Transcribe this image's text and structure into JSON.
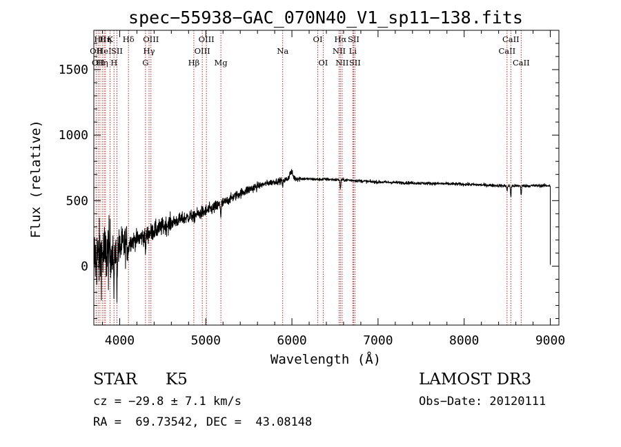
{
  "chart_data": {
    "type": "line",
    "title": "spec−55938−GAC_070N40_V1_sp11−138.fits",
    "xlabel": "Wavelength (Å)",
    "ylabel": "Flux (relative)",
    "xlim": [
      3700,
      9100
    ],
    "ylim": [
      -450,
      1800
    ],
    "xticks": [
      4000,
      5000,
      6000,
      7000,
      8000,
      9000
    ],
    "yticks": [
      0,
      500,
      1000,
      1500
    ],
    "grid": false,
    "spectrum": {
      "name": "flux",
      "continuum": [
        [
          3700,
          60
        ],
        [
          3800,
          80
        ],
        [
          3900,
          100
        ],
        [
          4000,
          140
        ],
        [
          4100,
          180
        ],
        [
          4200,
          205
        ],
        [
          4300,
          235
        ],
        [
          4400,
          270
        ],
        [
          4500,
          300
        ],
        [
          4600,
          330
        ],
        [
          4700,
          355
        ],
        [
          4800,
          375
        ],
        [
          4900,
          395
        ],
        [
          5000,
          420
        ],
        [
          5100,
          445
        ],
        [
          5200,
          480
        ],
        [
          5300,
          520
        ],
        [
          5400,
          555
        ],
        [
          5500,
          585
        ],
        [
          5600,
          610
        ],
        [
          5700,
          630
        ],
        [
          5800,
          645
        ],
        [
          5900,
          655
        ],
        [
          6000,
          670
        ],
        [
          6100,
          668
        ],
        [
          6200,
          665
        ],
        [
          6300,
          662
        ],
        [
          6400,
          663
        ],
        [
          6500,
          660
        ],
        [
          6600,
          658
        ],
        [
          6700,
          655
        ],
        [
          6800,
          650
        ],
        [
          6900,
          645
        ],
        [
          7000,
          642
        ],
        [
          7500,
          633
        ],
        [
          8000,
          625
        ],
        [
          8500,
          612
        ],
        [
          9000,
          615
        ]
      ],
      "absorption_features": [
        {
          "wave": 3934,
          "depth": 300
        },
        {
          "wave": 3968,
          "depth": 260
        },
        {
          "wave": 4102,
          "depth": 60
        },
        {
          "wave": 4300,
          "depth": 120
        },
        {
          "wave": 4861,
          "depth": 40
        },
        {
          "wave": 5175,
          "depth": 80
        },
        {
          "wave": 5893,
          "depth": 45
        },
        {
          "wave": 6563,
          "depth": 70
        },
        {
          "wave": 8498,
          "depth": 40
        },
        {
          "wave": 8542,
          "depth": 80
        },
        {
          "wave": 8662,
          "depth": 70
        }
      ],
      "emission_features": [
        {
          "wave": 5990,
          "height": 50
        }
      ],
      "end_drop": {
        "wave": 9000,
        "value": 10
      }
    },
    "line_markers": [
      {
        "wave": 3727,
        "label": "OII",
        "row": 1
      },
      {
        "wave": 3750,
        "label": "OII",
        "row": 2
      },
      {
        "wave": 3771,
        "label": "Hθ",
        "row": 0
      },
      {
        "wave": 3798,
        "label": "Hη",
        "row": 2
      },
      {
        "wave": 3820,
        "label": "HeI",
        "row": 1
      },
      {
        "wave": 3835,
        "label": "Hη",
        "row": 0
      },
      {
        "wave": 3889,
        "label": "K",
        "row": 0
      },
      {
        "wave": 3934,
        "label": "H",
        "row": 2
      },
      {
        "wave": 3968,
        "label": "SII",
        "row": 1
      },
      {
        "wave": 4102,
        "label": "Hδ",
        "row": 0
      },
      {
        "wave": 4300,
        "label": "G",
        "row": 2
      },
      {
        "wave": 4341,
        "label": "Hγ",
        "row": 1
      },
      {
        "wave": 4363,
        "label": "OIII",
        "row": 0
      },
      {
        "wave": 4861,
        "label": "Hβ",
        "row": 2
      },
      {
        "wave": 4959,
        "label": "OIII",
        "row": 1
      },
      {
        "wave": 5007,
        "label": "OIII",
        "row": 0
      },
      {
        "wave": 5175,
        "label": "Mg",
        "row": 2
      },
      {
        "wave": 5893,
        "label": "Na",
        "row": 1
      },
      {
        "wave": 6300,
        "label": "OI",
        "row": 0
      },
      {
        "wave": 6363,
        "label": "OI",
        "row": 2
      },
      {
        "wave": 6548,
        "label": "NII",
        "row": 1
      },
      {
        "wave": 6563,
        "label": "Hα",
        "row": 0
      },
      {
        "wave": 6583,
        "label": "NII",
        "row": 2
      },
      {
        "wave": 6707,
        "label": "Li",
        "row": 1
      },
      {
        "wave": 6716,
        "label": "SII",
        "row": 0
      },
      {
        "wave": 6731,
        "label": "SII",
        "row": 2
      },
      {
        "wave": 8498,
        "label": "CaII",
        "row": 1
      },
      {
        "wave": 8542,
        "label": "CaII",
        "row": 0
      },
      {
        "wave": 8662,
        "label": "CaII",
        "row": 2
      }
    ],
    "line_color": "#b22222",
    "spectrum_color": "#000000"
  },
  "info": {
    "class_label": "STAR",
    "subclass": "K5",
    "survey": "LAMOST DR3",
    "cz_text": "cz = −29.8 ± 7.1 km/s",
    "obs_date": "Obs−Date: 20120111",
    "coords": "RA =  69.73542, DEC =  43.08148"
  }
}
